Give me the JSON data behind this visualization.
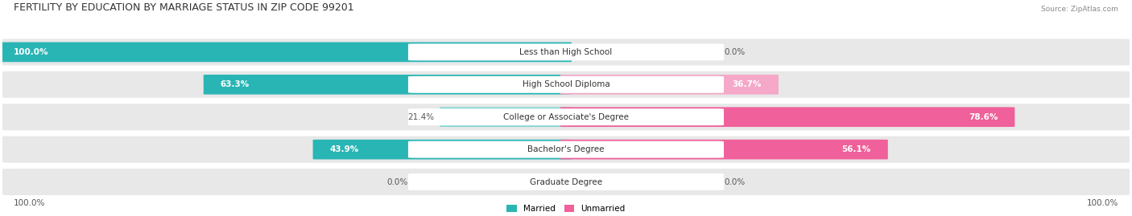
{
  "title": "FERTILITY BY EDUCATION BY MARRIAGE STATUS IN ZIP CODE 99201",
  "source": "Source: ZipAtlas.com",
  "categories": [
    "Less than High School",
    "High School Diploma",
    "College or Associate's Degree",
    "Bachelor's Degree",
    "Graduate Degree"
  ],
  "married_values": [
    100.0,
    63.3,
    21.4,
    43.9,
    0.0
  ],
  "unmarried_values": [
    0.0,
    36.7,
    78.6,
    56.1,
    0.0
  ],
  "married_color_dark": "#2ab5b5",
  "married_color_light": "#85d5d5",
  "unmarried_color_dark": "#f0609a",
  "unmarried_color_light": "#f5a8c8",
  "row_bg_color": "#e8e8e8",
  "fig_bg_color": "#ffffff",
  "title_fontsize": 9,
  "label_fontsize": 7.5,
  "value_fontsize": 7.5,
  "legend_married": "Married",
  "legend_unmarried": "Unmarried"
}
